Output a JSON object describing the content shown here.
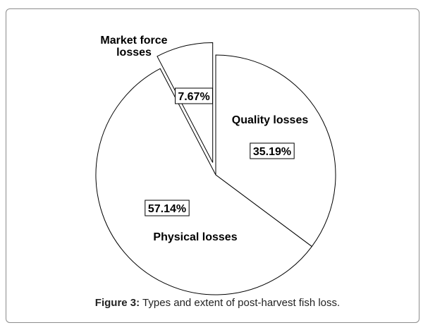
{
  "chart_data": {
    "type": "pie",
    "slices": [
      {
        "label": "Quality losses",
        "value": 35.19,
        "value_label": "35.19%",
        "exploded": false
      },
      {
        "label": "Physical losses",
        "value": 57.14,
        "value_label": "57.14%",
        "exploded": false
      },
      {
        "label": "Market force losses",
        "label_lines": [
          "Market force",
          "losses"
        ],
        "value": 7.67,
        "value_label": "7.67%",
        "exploded": true
      }
    ],
    "fill": "#ffffff",
    "stroke": "#000000"
  },
  "caption": {
    "prefix": "Figure 3:",
    "text": "Types and extent of post-harvest fish loss."
  }
}
